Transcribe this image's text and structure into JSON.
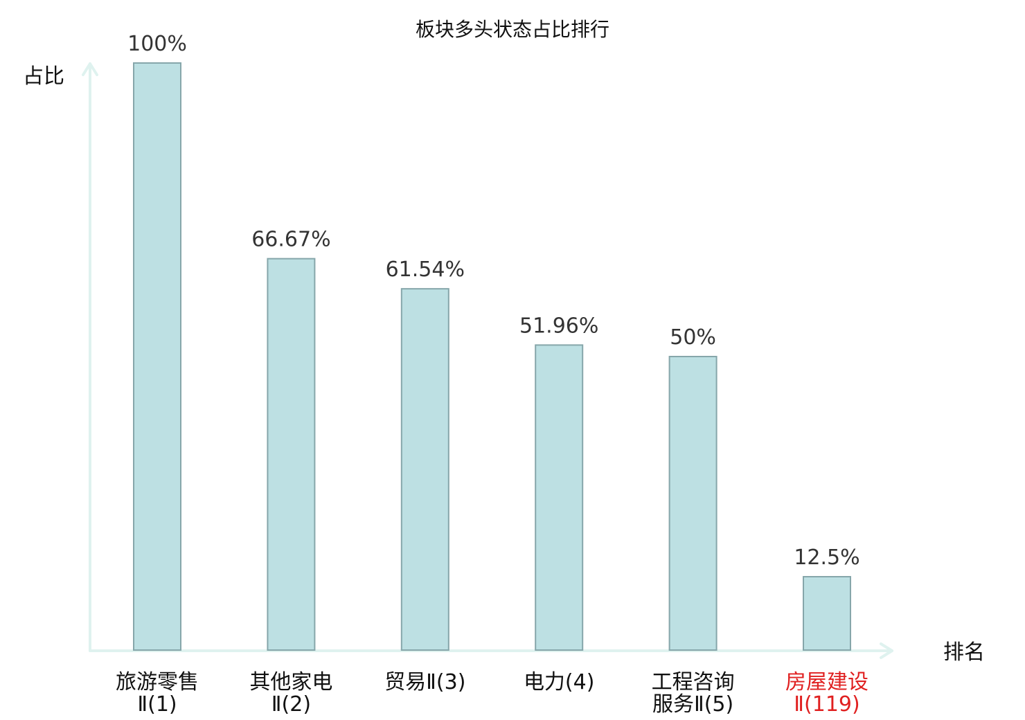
{
  "chart_data": {
    "type": "bar",
    "title": "板块多头状态占比排行",
    "xlabel": "排名",
    "ylabel": "占比",
    "ylim": [
      0,
      100
    ],
    "grid": false,
    "legend": "none",
    "categories": [
      {
        "line1": "旅游零售",
        "line2": "Ⅱ(1)",
        "highlight": false
      },
      {
        "line1": "其他家电",
        "line2": "Ⅱ(2)",
        "highlight": false
      },
      {
        "line1": "贸易Ⅱ(3)",
        "line2": "",
        "highlight": false
      },
      {
        "line1": "电力(4)",
        "line2": "",
        "highlight": false
      },
      {
        "line1": "工程咨询",
        "line2": "服务Ⅱ(5)",
        "highlight": false
      },
      {
        "line1": "房屋建设",
        "line2": "Ⅱ(119)",
        "highlight": true
      }
    ],
    "values": [
      100,
      66.67,
      61.54,
      51.96,
      50,
      12.5
    ],
    "value_labels": [
      "100%",
      "66.67%",
      "61.54%",
      "51.96%",
      "50%",
      "12.5%"
    ]
  },
  "colors": {
    "bar_fill": "#bde0e3",
    "bar_stroke": "#86a6aa",
    "axis": "#dff2ef",
    "highlight_text": "#e02020",
    "text": "#111111",
    "value_text": "#333333"
  }
}
